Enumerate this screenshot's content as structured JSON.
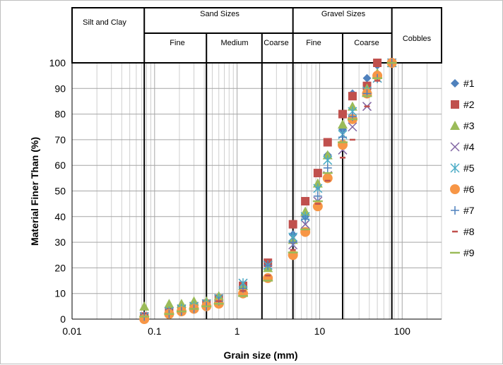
{
  "chart_data": {
    "type": "scatter",
    "title": "",
    "xlabel": "Grain size (mm)",
    "ylabel": "Material Finer Than (%)",
    "x_scale": "log",
    "xlim": [
      0.01,
      300
    ],
    "ylim": [
      0,
      100
    ],
    "x_ticks": [
      "0.01",
      "0.1",
      "1",
      "10",
      "100"
    ],
    "y_ticks": [
      "0",
      "10",
      "20",
      "30",
      "40",
      "50",
      "60",
      "70",
      "80",
      "90",
      "100"
    ],
    "grid": true,
    "legend_position": "right",
    "class_header": {
      "silt_clay": "Silt and Clay",
      "sand": "Sand Sizes",
      "gravel": "Gravel Sizes",
      "cobbles": "Cobbles",
      "sand_fine": "Fine",
      "sand_medium": "Medium",
      "sand_coarse": "Coarse",
      "gravel_fine": "Fine",
      "gravel_coarse": "Coarse"
    },
    "class_boundaries_mm": [
      0.075,
      0.425,
      2.0,
      4.75,
      19.0,
      75.0
    ],
    "x": [
      0.075,
      0.15,
      0.212,
      0.3,
      0.425,
      0.6,
      1.18,
      2.36,
      4.75,
      6.7,
      9.5,
      12.5,
      19.0,
      25.0,
      37.5,
      50.0,
      75.0
    ],
    "series": [
      {
        "name": "#1",
        "marker": "diamond",
        "color": "#4f81bd",
        "values": [
          1,
          3,
          4,
          5,
          6,
          8,
          13,
          22,
          33,
          40,
          52,
          64,
          74,
          88,
          94,
          99,
          100
        ]
      },
      {
        "name": "#2",
        "marker": "square",
        "color": "#c0504d",
        "values": [
          1,
          3,
          4,
          5,
          6,
          8,
          13,
          22,
          37,
          46,
          57,
          69,
          80,
          87,
          91,
          100,
          100
        ]
      },
      {
        "name": "#3",
        "marker": "triangle",
        "color": "#9bbb59",
        "values": [
          5,
          6,
          6,
          7,
          7,
          9,
          13,
          20,
          31,
          42,
          53,
          64,
          76,
          83,
          90,
          96,
          100
        ]
      },
      {
        "name": "#4",
        "marker": "x",
        "color": "#8064a2",
        "values": [
          1,
          3,
          4,
          5,
          6,
          8,
          14,
          21,
          29,
          37,
          46,
          56,
          66,
          75,
          83,
          94,
          100
        ]
      },
      {
        "name": "#5",
        "marker": "asterisk",
        "color": "#4bacc6",
        "values": [
          1,
          3,
          4,
          5,
          6,
          8,
          14,
          21,
          32,
          40,
          51,
          62,
          72,
          81,
          89,
          94,
          100
        ]
      },
      {
        "name": "#6",
        "marker": "circle",
        "color": "#f79646",
        "values": [
          0,
          2,
          3,
          4,
          5,
          6,
          10,
          16,
          25,
          34,
          44,
          55,
          68,
          78,
          88,
          95,
          100
        ]
      },
      {
        "name": "#7",
        "marker": "plus",
        "color": "#4f81bd",
        "values": [
          1,
          2,
          3,
          4,
          5,
          7,
          12,
          21,
          30,
          39,
          48,
          59,
          71,
          79,
          88,
          94,
          100
        ]
      },
      {
        "name": "#8",
        "marker": "dash",
        "color": "#c0504d",
        "values": [
          1,
          2,
          3,
          4,
          5,
          7,
          11,
          17,
          27,
          35,
          45,
          54,
          63,
          70,
          83,
          93,
          100
        ]
      },
      {
        "name": "#9",
        "marker": "longdash",
        "color": "#9bbb59",
        "values": [
          1,
          2,
          3,
          4,
          5,
          6,
          9,
          15,
          26,
          35,
          46,
          57,
          69,
          78,
          87,
          94,
          100
        ]
      }
    ]
  }
}
